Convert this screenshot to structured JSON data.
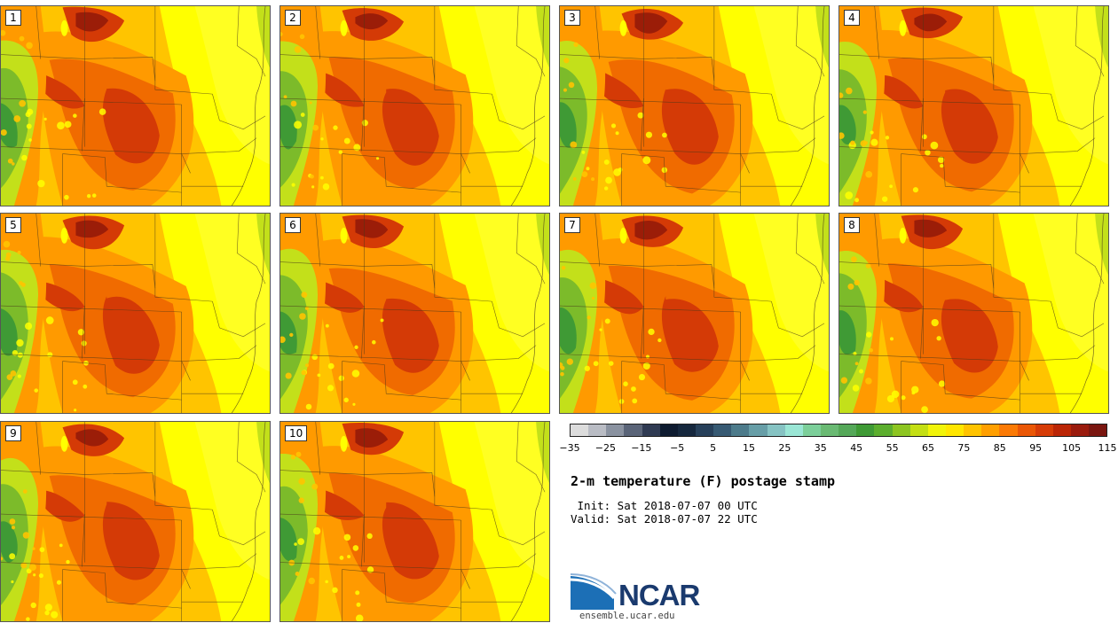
{
  "colors": {
    "heat_dark": "#9b1d08",
    "heat_red": "#d43a06",
    "heat_orange": "#f06b00",
    "heat_amber": "#ff9a00",
    "heat_gold": "#ffc400",
    "heat_yellow": "#ffff00",
    "cool_green": "#7cbb2a",
    "cool_darkgreen": "#3f9a35",
    "cool_lime": "#c3e01a"
  },
  "panels": [
    {
      "label": "1"
    },
    {
      "label": "2"
    },
    {
      "label": "3"
    },
    {
      "label": "4"
    },
    {
      "label": "5"
    },
    {
      "label": "6"
    },
    {
      "label": "7"
    },
    {
      "label": "8"
    },
    {
      "label": "9"
    },
    {
      "label": "10"
    }
  ],
  "colorbar": {
    "colors": [
      "#dcdcdc",
      "#b9bcc4",
      "#8a92a0",
      "#5a6478",
      "#2f3a52",
      "#0e1b30",
      "#16283e",
      "#27405a",
      "#375a73",
      "#4d7b8b",
      "#679ea7",
      "#86c3c3",
      "#9ae6d5",
      "#7ccf9a",
      "#6aba73",
      "#55a859",
      "#3f9a35",
      "#5cae2e",
      "#8dc521",
      "#c4df14",
      "#f1f40a",
      "#ffe600",
      "#ffc300",
      "#ff9f00",
      "#fb7a05",
      "#ea5706",
      "#d63c07",
      "#bb2606",
      "#9a1b0d",
      "#7a1610"
    ],
    "ticks": [
      "−35",
      "−25",
      "−15",
      "−5",
      "5",
      "15",
      "25",
      "35",
      "45",
      "55",
      "65",
      "75",
      "85",
      "95",
      "105",
      "115"
    ]
  },
  "title": "2-m temperature (F) postage stamp",
  "init": " Init: Sat 2018-07-07 00 UTC",
  "valid": "Valid: Sat 2018-07-07 22 UTC",
  "logo": {
    "text": "NCAR",
    "url": "ensemble.ucar.edu"
  }
}
